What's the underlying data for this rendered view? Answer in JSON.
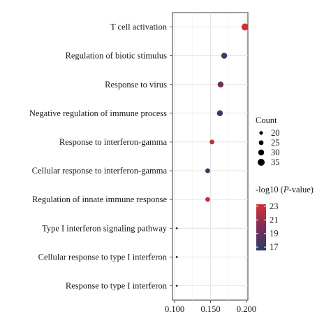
{
  "chart_data": {
    "type": "scatter",
    "title": "",
    "xlabel": "",
    "ylabel": "",
    "xlim": [
      0.097,
      0.202
    ],
    "x_ticks": [
      0.1,
      0.15,
      0.2
    ],
    "x_tick_labels": [
      "0.100",
      "0.150",
      "0.200"
    ],
    "grid": true,
    "categories": [
      "T cell activation",
      "Regulation of biotic stimulus",
      "Response to virus",
      "Negative regulation of immune process",
      "Response to interferon-gamma",
      "Cellular response to interferon-gamma",
      "Regulation of innate immune response",
      "Type I interferon signaling pathway",
      "Cellular response to type I interferon",
      "Response to type I interferon"
    ],
    "points": [
      {
        "category": "T cell activation",
        "x": 0.198,
        "count": 35,
        "neg_log10_p": 23
      },
      {
        "category": "Regulation of biotic stimulus",
        "x": 0.169,
        "count": 30,
        "neg_log10_p": 17.5
      },
      {
        "category": "Response to virus",
        "x": 0.164,
        "count": 30,
        "neg_log10_p": 19.5
      },
      {
        "category": "Negative regulation of immune process",
        "x": 0.163,
        "count": 30,
        "neg_log10_p": 17.2
      },
      {
        "category": "Response to interferon-gamma",
        "x": 0.152,
        "count": 25,
        "neg_log10_p": 22.5
      },
      {
        "category": "Cellular response to interferon-gamma",
        "x": 0.146,
        "count": 25,
        "neg_log10_p": 17.3
      },
      {
        "category": "Regulation of innate immune response",
        "x": 0.146,
        "count": 25,
        "neg_log10_p": 22.6
      },
      {
        "category": "Type I interferon signaling pathway",
        "x": 0.103,
        "count": 18,
        "neg_log10_p": 17.5
      },
      {
        "category": "Cellular response to type I interferon",
        "x": 0.103,
        "count": 18,
        "neg_log10_p": 17.5
      },
      {
        "category": "Response to type I interferon",
        "x": 0.103,
        "count": 18,
        "neg_log10_p": 17.5
      }
    ],
    "size_legend": {
      "title": "Count",
      "values": [
        20,
        25,
        30,
        35
      ],
      "labels": [
        "20",
        "25",
        "30",
        "35"
      ]
    },
    "color_legend": {
      "title_prefix": "-log10 (",
      "title_italic": "P",
      "title_suffix": "-value)",
      "ticks": [
        23,
        21,
        19,
        17
      ],
      "tick_labels": [
        "23",
        "21",
        "19",
        "17"
      ],
      "range": [
        16.5,
        23.3
      ],
      "color_low": "#2b3a67",
      "color_mid": "#7a2e5a",
      "color_high": "#d63131"
    },
    "legend_position": "right"
  }
}
